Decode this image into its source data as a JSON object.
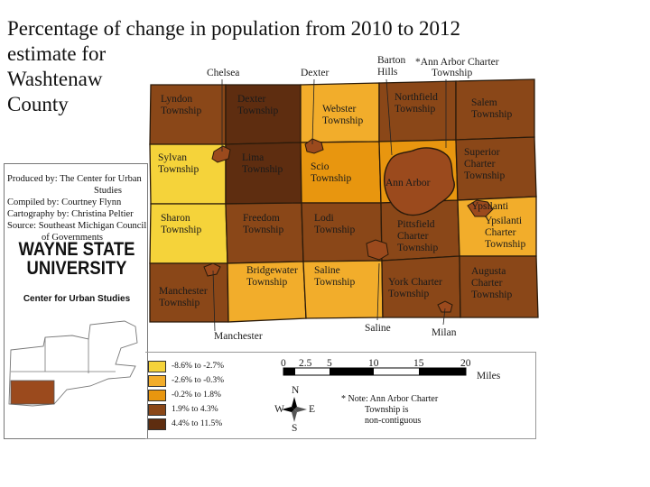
{
  "title": {
    "line1": "Percentage of change in population from 2010 to 2012",
    "line2": "estimate for",
    "line3": "Washtenaw",
    "line4": "County"
  },
  "credits": {
    "produced_by_1": "Produced by: The Center for Urban",
    "produced_by_2": "Studies",
    "compiled_by": "Compiled by: Courtney Flynn",
    "cartography_by": "Cartography by: Christina Peltier",
    "source_1": "Source: Southeast Michigan Council",
    "source_2": "of Governments"
  },
  "logo": {
    "line1": "WAYNE STATE",
    "line2": "UNIVERSITY",
    "line3": "Center for Urban Studies"
  },
  "colors": {
    "class1": "#f5d33a",
    "class2": "#f2ad2b",
    "class3": "#e8960f",
    "class4": "#8a4718",
    "class5": "#5e2d10",
    "border": "#2a1a0a",
    "highlight": "#9b4a1d"
  },
  "legend": [
    {
      "label": "-8.6% to -2.7%",
      "color": "#f5d33a"
    },
    {
      "label": "-2.6% to -0.3%",
      "color": "#f2ad2b"
    },
    {
      "label": "-0.2% to  1.8%",
      "color": "#e8960f"
    },
    {
      "label": "1.9% to  4.3%",
      "color": "#8a4718"
    },
    {
      "label": "4.4% to  11.5%",
      "color": "#5e2d10"
    }
  ],
  "townships": [
    {
      "name": "Lyndon Township",
      "l1": "Lyndon",
      "l2": "Township",
      "l3": "",
      "color": "#8a4718"
    },
    {
      "name": "Dexter Township",
      "l1": "Dexter",
      "l2": "Township",
      "l3": "",
      "color": "#5e2d10"
    },
    {
      "name": "Webster Township",
      "l1": "Webster",
      "l2": "Township",
      "l3": "",
      "color": "#f2ad2b"
    },
    {
      "name": "Northfield Township",
      "l1": "Northfield",
      "l2": "Township",
      "l3": "",
      "color": "#8a4718"
    },
    {
      "name": "Salem Township",
      "l1": "Salem",
      "l2": "Township",
      "l3": "",
      "color": "#8a4718"
    },
    {
      "name": "Sylvan Township",
      "l1": "Sylvan",
      "l2": "Township",
      "l3": "",
      "color": "#f5d33a"
    },
    {
      "name": "Lima Township",
      "l1": "Lima",
      "l2": "Township",
      "l3": "",
      "color": "#5e2d10"
    },
    {
      "name": "Scio Township",
      "l1": "Scio",
      "l2": "Township",
      "l3": "",
      "color": "#e8960f"
    },
    {
      "name": "Ann Arbor",
      "l1": "Ann Arbor",
      "l2": "",
      "l3": "",
      "color": "#e8960f"
    },
    {
      "name": "Superior Charter Township",
      "l1": "Superior",
      "l2": "Charter",
      "l3": "Township",
      "color": "#8a4718"
    },
    {
      "name": "Sharon Township",
      "l1": "Sharon",
      "l2": "Township",
      "l3": "",
      "color": "#f5d33a"
    },
    {
      "name": "Freedom Township",
      "l1": "Freedom",
      "l2": "Township",
      "l3": "",
      "color": "#8a4718"
    },
    {
      "name": "Lodi Township",
      "l1": "Lodi",
      "l2": "Township",
      "l3": "",
      "color": "#8a4718"
    },
    {
      "name": "Pittsfield Charter Township",
      "l1": "Pittsfield",
      "l2": "Charter",
      "l3": "Township",
      "color": "#8a4718"
    },
    {
      "name": "Ypsilanti Charter Township",
      "l1": "Ypsilanti",
      "l2": "Charter",
      "l3": "Township",
      "color": "#f2ad2b"
    },
    {
      "name": "Manchester Township",
      "l1": "Manchester",
      "l2": "Township",
      "l3": "",
      "color": "#8a4718"
    },
    {
      "name": "Bridgewater Township",
      "l1": "Bridgewater",
      "l2": "Township",
      "l3": "",
      "color": "#f2ad2b"
    },
    {
      "name": "Saline Township",
      "l1": "Saline",
      "l2": "Township",
      "l3": "",
      "color": "#f2ad2b"
    },
    {
      "name": "York Charter Township",
      "l1": "York Charter",
      "l2": "Township",
      "l3": "",
      "color": "#8a4718"
    },
    {
      "name": "Augusta Charter Township",
      "l1": "Augusta",
      "l2": "Charter",
      "l3": "Township",
      "color": "#8a4718"
    }
  ],
  "places": {
    "chelsea": "Chelsea",
    "dexter": "Dexter",
    "barton_hills_1": "Barton",
    "barton_hills_2": "Hills",
    "aa_charter_1": "*Ann Arbor Charter",
    "aa_charter_2": "Township",
    "ypsilanti": "Ypsilanti",
    "manchester": "Manchester",
    "saline": "Saline",
    "milan": "Milan"
  },
  "scale": {
    "ticks": [
      "0",
      "2.5",
      "5",
      "10",
      "15",
      "20"
    ],
    "unit": "Miles"
  },
  "compass": {
    "n": "N",
    "s": "S",
    "e": "E",
    "w": "W"
  },
  "note": {
    "line1": "* Note: Ann Arbor Charter",
    "line2": "Township is",
    "line3": "non-contiguous"
  }
}
